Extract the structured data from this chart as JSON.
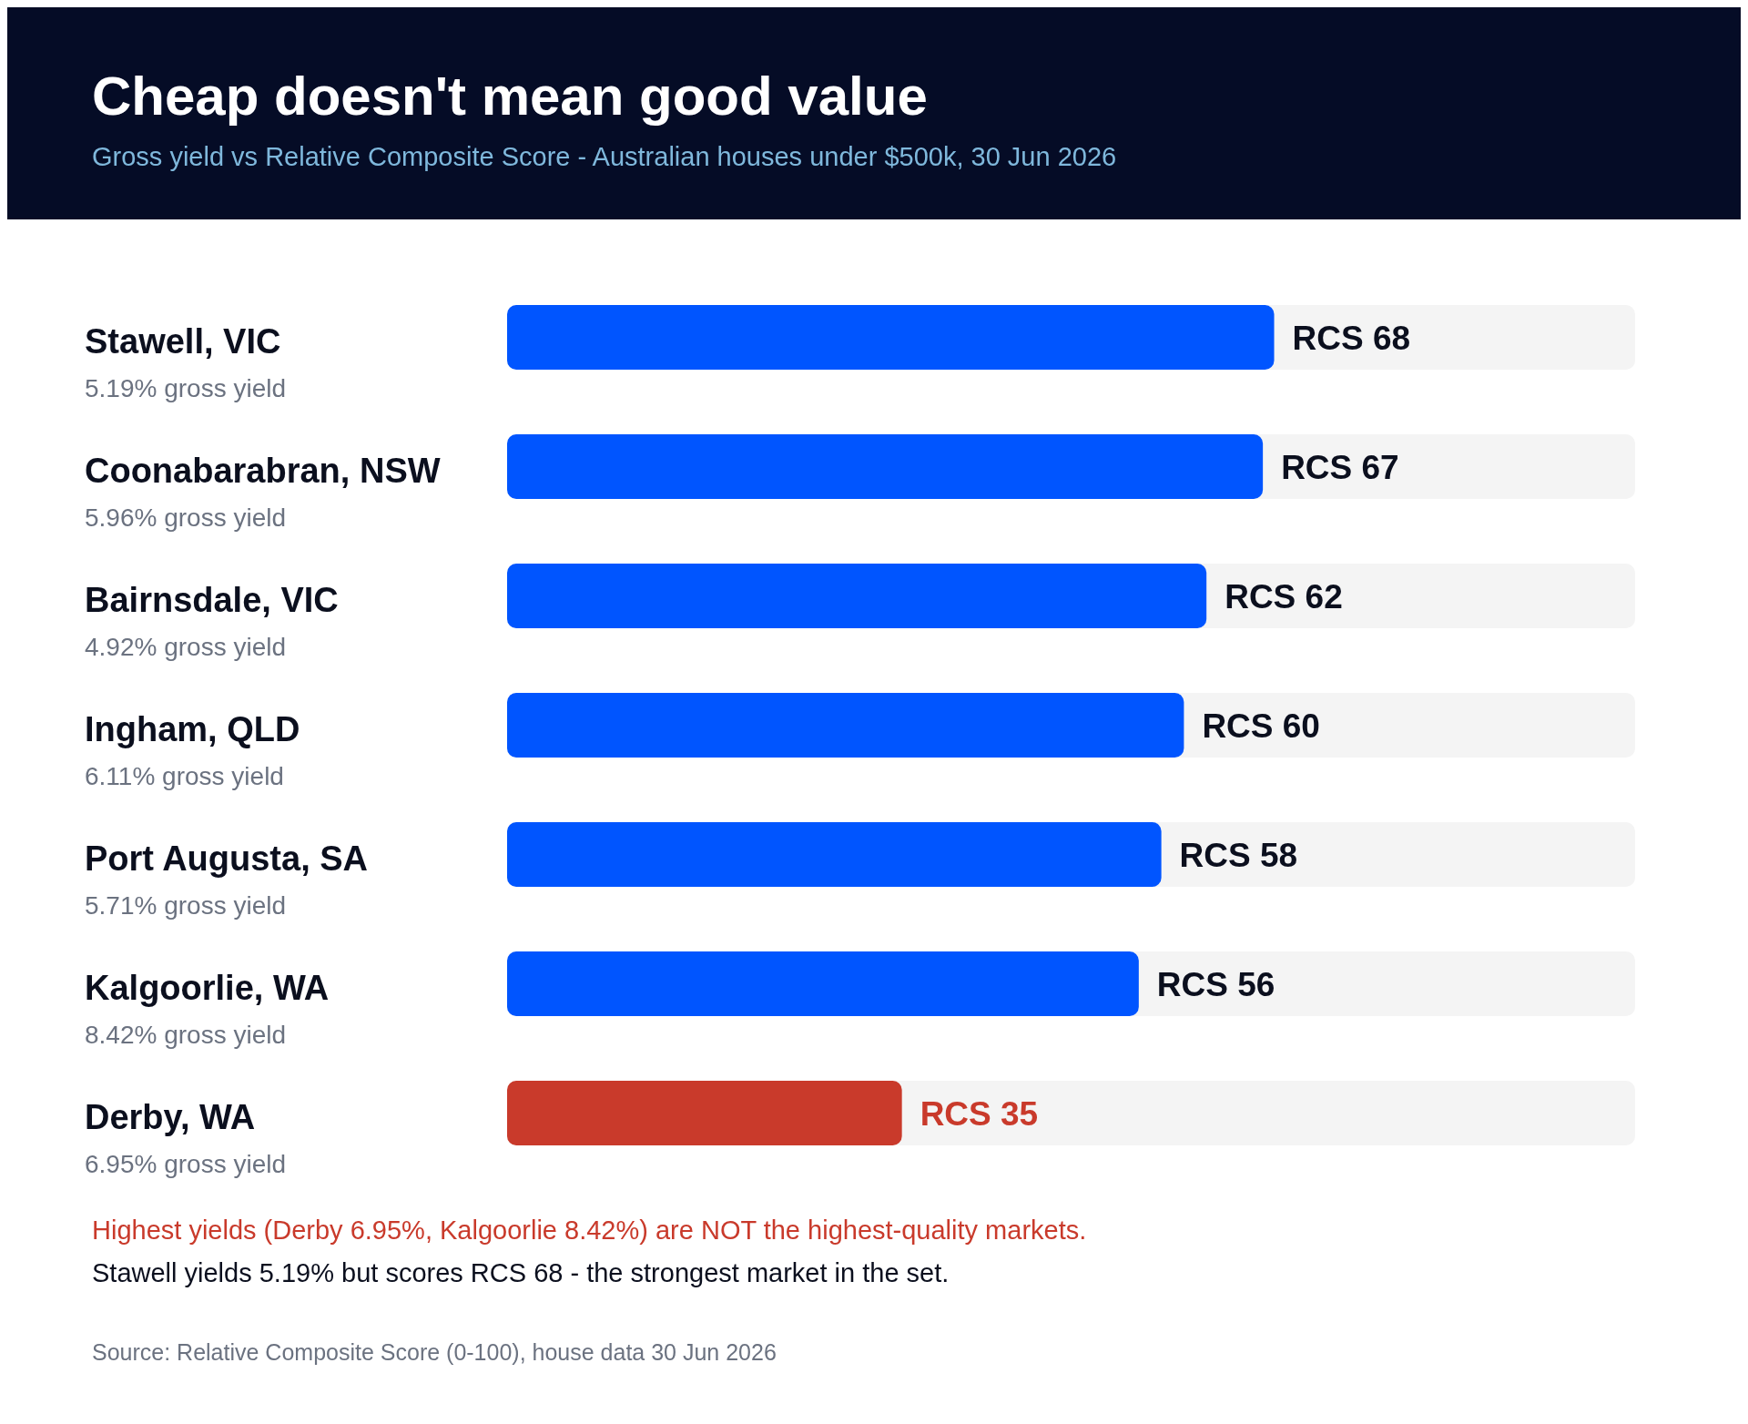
{
  "chart_data": {
    "type": "bar",
    "orientation": "horizontal",
    "title": "Cheap doesn't mean good value",
    "subtitle": "Gross yield vs Relative Composite Score - Australian houses under $500k, 30 Jun 2026",
    "categories": [
      "Stawell, VIC\n5.19% gross yield",
      "Coonabarabran, NSW\n5.96% gross yield",
      "Bairnsdale, VIC\n4.92% gross yield",
      "Ingham, QLD\n6.11% gross yield",
      "Port Augusta, SA\n5.71% gross yield",
      "Kalgoorlie, WA\n8.42% gross yield",
      "Derby, WA\n6.95% gross yield"
    ],
    "values": [
      68,
      67,
      62,
      60,
      58,
      56,
      35
    ],
    "colors": [
      "#0055ff",
      "#0055ff",
      "#0055ff",
      "#0055ff",
      "#0055ff",
      "#0055ff",
      "#c93a2b"
    ],
    "value_labels": [
      "RCS 68",
      "RCS 67",
      "RCS 62",
      "RCS 60",
      "RCS 58",
      "RCS 56",
      "RCS 35"
    ],
    "xlim": [
      0,
      100
    ],
    "tick_labels": "y",
    "annotations": [
      "Highest yields (Derby 6.95%, Kalgoorlie 8.42%) are NOT the highest-quality markets.",
      "Stawell yields 5.19% but scores RCS 68 - the strongest market in the set.",
      "Source: Relative Composite Score (0-100), house data 30 Jun 2026"
    ]
  }
}
